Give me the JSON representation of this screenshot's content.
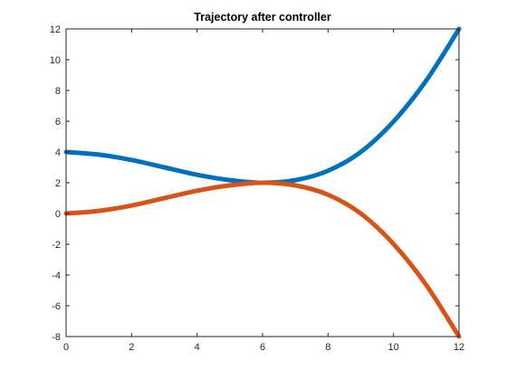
{
  "chart_data": {
    "type": "line",
    "title": "Trajectory after controller",
    "xlabel": "",
    "ylabel": "",
    "xlim": [
      0,
      12
    ],
    "ylim": [
      -8,
      12
    ],
    "xticks": [
      0,
      2,
      4,
      6,
      8,
      10,
      12
    ],
    "yticks": [
      -8,
      -6,
      -4,
      -2,
      0,
      2,
      4,
      6,
      8,
      10,
      12
    ],
    "grid": false,
    "series": [
      {
        "color": "#0072BD",
        "x": [
          0,
          1,
          2,
          3,
          4,
          5,
          6,
          7,
          8,
          9,
          10,
          11,
          12
        ],
        "y": [
          4.0,
          3.83,
          3.48,
          3.0,
          2.52,
          2.17,
          2.0,
          2.17,
          2.78,
          4.0,
          5.98,
          8.65,
          12.0
        ]
      },
      {
        "color": "#D95319",
        "x": [
          0,
          1,
          2,
          3,
          4,
          5,
          6,
          7,
          8,
          9,
          10,
          11,
          12
        ],
        "y": [
          0.0,
          0.17,
          0.52,
          1.0,
          1.48,
          1.83,
          2.0,
          1.83,
          1.22,
          0.0,
          -1.98,
          -4.65,
          -8.0
        ]
      }
    ]
  }
}
